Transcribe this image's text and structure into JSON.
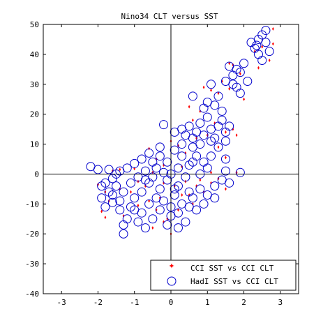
{
  "chart_data": {
    "type": "scatter",
    "title": "Nino34 CLT versus SST",
    "xlabel": "",
    "ylabel": "",
    "xlim": [
      -3.5,
      3.5
    ],
    "ylim": [
      -40,
      50
    ],
    "xticks": [
      -3,
      -2,
      -1,
      0,
      1,
      2,
      3
    ],
    "yticks": [
      -40,
      -30,
      -20,
      -10,
      0,
      10,
      20,
      30,
      40,
      50
    ],
    "grid": false,
    "reference_lines": {
      "x": 0,
      "y": 0
    },
    "legend_position": "bottom-right",
    "series": [
      {
        "name": "CCI SST vs CCI CLT",
        "marker": "dot",
        "color": "#ff0000",
        "points": [
          [
            2.8,
            48.5
          ],
          [
            2.8,
            43.5
          ],
          [
            2.5,
            42.5
          ],
          [
            2.7,
            38
          ],
          [
            2.3,
            41
          ],
          [
            1.6,
            37
          ],
          [
            1.7,
            36.5
          ],
          [
            1.9,
            33.5
          ],
          [
            1.4,
            31
          ],
          [
            0.9,
            29
          ],
          [
            1.1,
            28
          ],
          [
            1.3,
            27
          ],
          [
            0.5,
            22.5
          ],
          [
            0.8,
            21
          ],
          [
            0.6,
            18
          ],
          [
            1.2,
            17
          ],
          [
            1.7,
            15
          ],
          [
            1.5,
            14
          ],
          [
            0.7,
            12
          ],
          [
            1.8,
            13
          ],
          [
            1.0,
            13
          ],
          [
            1.3,
            9
          ],
          [
            0.2,
            9.5
          ],
          [
            -0.6,
            8.5
          ],
          [
            0.4,
            7
          ],
          [
            -0.4,
            5
          ],
          [
            -0.2,
            3
          ],
          [
            0.3,
            2.5
          ],
          [
            1.5,
            5.5
          ],
          [
            -1.0,
            1.8
          ],
          [
            -1.4,
            1.5
          ],
          [
            -1.6,
            1
          ],
          [
            -2.0,
            -3.5
          ],
          [
            -1.8,
            -6
          ],
          [
            -1.7,
            -9
          ],
          [
            -1.9,
            -12.5
          ],
          [
            -1.8,
            -14.5
          ],
          [
            -1.3,
            -14
          ],
          [
            -0.9,
            -10.5
          ],
          [
            -0.6,
            -9
          ],
          [
            -0.4,
            -12
          ],
          [
            -0.2,
            -16
          ],
          [
            0.0,
            -20
          ],
          [
            -0.5,
            -18
          ],
          [
            -0.1,
            -15
          ],
          [
            0.2,
            -12
          ],
          [
            0.5,
            -7
          ],
          [
            0.7,
            -4
          ],
          [
            0.8,
            -2
          ],
          [
            1.1,
            -3
          ],
          [
            1.3,
            -1.5
          ],
          [
            1.5,
            -5
          ],
          [
            1.1,
            0.5
          ],
          [
            0.4,
            -2.5
          ],
          [
            0.1,
            -4
          ],
          [
            -0.2,
            -3
          ],
          [
            -0.7,
            -4
          ],
          [
            -1.1,
            -6
          ],
          [
            -1.4,
            -5
          ],
          [
            0.3,
            -7
          ],
          [
            0.6,
            -10
          ],
          [
            -0.3,
            -8
          ],
          [
            -0.9,
            -2.5
          ],
          [
            0.9,
            -6
          ],
          [
            1.8,
            0.5
          ],
          [
            2.0,
            25
          ],
          [
            1.6,
            28.5
          ],
          [
            2.4,
            35.5
          ],
          [
            0.0,
            11
          ],
          [
            -0.5,
            0.5
          ]
        ]
      },
      {
        "name": "HadI SST vs CCI CLT",
        "marker": "circle",
        "color": "#0000cc",
        "points": [
          [
            2.6,
            48
          ],
          [
            2.5,
            46.5
          ],
          [
            2.4,
            45
          ],
          [
            2.2,
            44
          ],
          [
            2.35,
            43
          ],
          [
            2.6,
            44
          ],
          [
            2.3,
            42
          ],
          [
            2.4,
            40
          ],
          [
            2.5,
            38
          ],
          [
            2.7,
            41
          ],
          [
            2.0,
            37
          ],
          [
            1.8,
            35
          ],
          [
            1.9,
            34
          ],
          [
            1.6,
            36
          ],
          [
            1.7,
            33
          ],
          [
            1.5,
            31
          ],
          [
            1.7,
            30
          ],
          [
            1.9,
            27
          ],
          [
            2.1,
            31
          ],
          [
            1.8,
            29
          ],
          [
            1.1,
            30
          ],
          [
            1.3,
            26
          ],
          [
            1.0,
            24
          ],
          [
            0.6,
            26
          ],
          [
            0.9,
            22
          ],
          [
            1.2,
            23
          ],
          [
            1.4,
            18
          ],
          [
            1.6,
            16
          ],
          [
            1.5,
            14
          ],
          [
            1.3,
            16
          ],
          [
            1.1,
            15
          ],
          [
            0.8,
            17
          ],
          [
            0.5,
            16
          ],
          [
            0.3,
            15
          ],
          [
            0.4,
            13
          ],
          [
            0.6,
            12
          ],
          [
            0.8,
            10
          ],
          [
            1.1,
            11
          ],
          [
            1.3,
            9
          ],
          [
            1.5,
            11
          ],
          [
            -0.2,
            16.5
          ],
          [
            0.1,
            14
          ],
          [
            0.6,
            9
          ],
          [
            0.3,
            10
          ],
          [
            0.1,
            8
          ],
          [
            -0.3,
            9
          ],
          [
            -0.6,
            7
          ],
          [
            -0.8,
            5
          ],
          [
            -1.0,
            3.5
          ],
          [
            -1.2,
            2
          ],
          [
            -1.4,
            1
          ],
          [
            -1.7,
            1.5
          ],
          [
            -2.2,
            2.5
          ],
          [
            -2.0,
            1.5
          ],
          [
            -1.6,
            -1.5
          ],
          [
            -1.8,
            -3
          ],
          [
            -1.5,
            -4
          ],
          [
            -1.7,
            -6
          ],
          [
            -1.9,
            -8
          ],
          [
            -1.6,
            -9.5
          ],
          [
            -1.8,
            -11
          ],
          [
            -1.4,
            -12
          ],
          [
            -1.2,
            -15
          ],
          [
            -1.3,
            -17
          ],
          [
            -1.3,
            -20
          ],
          [
            -0.9,
            -16
          ],
          [
            -0.7,
            -18
          ],
          [
            -0.5,
            -15
          ],
          [
            -0.3,
            -12
          ],
          [
            0.0,
            -14
          ],
          [
            -0.1,
            -17
          ],
          [
            0.2,
            -18
          ],
          [
            0.4,
            -16
          ],
          [
            0.3,
            -10
          ],
          [
            0.6,
            -8
          ],
          [
            0.5,
            -6
          ],
          [
            0.8,
            -5
          ],
          [
            1.0,
            -7
          ],
          [
            1.2,
            -4
          ],
          [
            1.4,
            -2
          ],
          [
            1.6,
            -3
          ],
          [
            1.5,
            1
          ],
          [
            1.0,
            2
          ],
          [
            0.9,
            4
          ],
          [
            0.7,
            6
          ],
          [
            0.5,
            3
          ],
          [
            0.2,
            2
          ],
          [
            -0.1,
            4
          ],
          [
            -0.4,
            2
          ],
          [
            -0.7,
            1
          ],
          [
            -0.9,
            -1
          ],
          [
            -1.1,
            -3
          ],
          [
            -0.6,
            -3
          ],
          [
            -0.3,
            -5
          ],
          [
            -0.1,
            -2
          ],
          [
            0.2,
            -4
          ],
          [
            0.4,
            -1
          ],
          [
            0.1,
            -7
          ],
          [
            -0.4,
            -8
          ],
          [
            -0.8,
            -6
          ],
          [
            -1.0,
            -8
          ],
          [
            -1.3,
            -6
          ],
          [
            -0.6,
            -10
          ],
          [
            -0.2,
            -9
          ],
          [
            0.0,
            -11
          ],
          [
            0.7,
            -12
          ],
          [
            0.9,
            -10
          ],
          [
            1.2,
            -8
          ],
          [
            1.9,
            0.5
          ],
          [
            1.5,
            5
          ],
          [
            0.0,
            0
          ],
          [
            -0.5,
            -1
          ],
          [
            -1.5,
            0
          ],
          [
            -1.9,
            -4
          ],
          [
            0.3,
            6
          ],
          [
            0.6,
            4
          ],
          [
            1.1,
            6
          ],
          [
            0.8,
            0
          ],
          [
            -0.2,
            0.5
          ],
          [
            -1.0,
            -12
          ],
          [
            -0.8,
            -13
          ],
          [
            0.5,
            -11
          ],
          [
            0.2,
            -13
          ],
          [
            -1.6,
            -7
          ],
          [
            0.7,
            14
          ],
          [
            1.0,
            19
          ],
          [
            1.4,
            21
          ],
          [
            1.2,
            12
          ],
          [
            0.9,
            13
          ],
          [
            -0.3,
            6
          ],
          [
            -0.5,
            4
          ],
          [
            -0.7,
            -2
          ],
          [
            0.1,
            -5
          ],
          [
            -1.4,
            -9
          ],
          [
            -1.1,
            -11
          ]
        ]
      }
    ]
  }
}
